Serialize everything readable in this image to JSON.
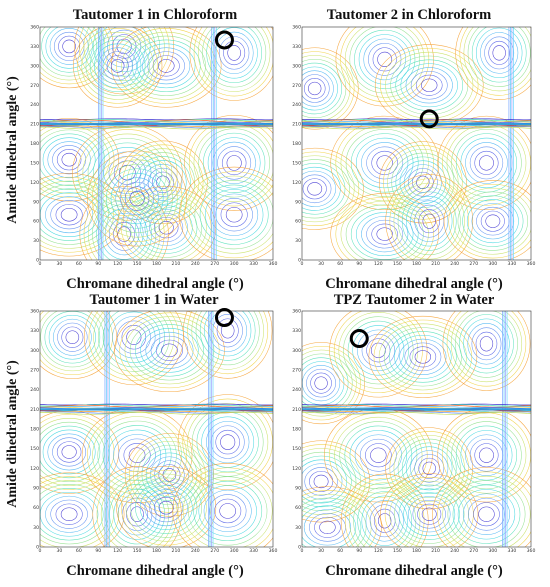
{
  "chart_data": [
    {
      "type": "contour",
      "title": "Tautomer 1 in Chloroform",
      "xlabel": "Chromane dihedral angle (°)",
      "ylabel": "Amide dihedral angle (°)",
      "xlim": [
        0,
        360
      ],
      "ylim": [
        0,
        360
      ],
      "x_ticks": [
        "0",
        "30",
        "60",
        "90",
        "120",
        "150",
        "180",
        "210",
        "240",
        "270",
        "300",
        "330",
        "360"
      ],
      "y_ticks": [
        "0",
        "30",
        "60",
        "90",
        "120",
        "150",
        "180",
        "210",
        "240",
        "270",
        "300",
        "330",
        "360"
      ],
      "wall_y": 210,
      "minima": [
        [
          45,
          330
        ],
        [
          130,
          330
        ],
        [
          195,
          300
        ],
        [
          300,
          320
        ],
        [
          45,
          155
        ],
        [
          135,
          135
        ],
        [
          190,
          120
        ],
        [
          300,
          150
        ],
        [
          45,
          70
        ],
        [
          130,
          40
        ],
        [
          195,
          50
        ],
        [
          300,
          70
        ],
        [
          120,
          300
        ],
        [
          150,
          95
        ]
      ],
      "vertical_walls": [
        95,
        270
      ],
      "marked_point": [
        285,
        340
      ]
    },
    {
      "type": "contour",
      "title": "Tautomer 2 in Chloroform",
      "xlabel": "Chromane dihedral angle (°)",
      "xlim": [
        0,
        360
      ],
      "ylim": [
        0,
        360
      ],
      "x_ticks": [
        "0",
        "30",
        "60",
        "90",
        "120",
        "150",
        "180",
        "210",
        "240",
        "270",
        "300",
        "330",
        "360"
      ],
      "y_ticks": [
        "0",
        "30",
        "60",
        "90",
        "120",
        "150",
        "180",
        "210",
        "240",
        "270",
        "300",
        "330",
        "360"
      ],
      "wall_y": 210,
      "minima": [
        [
          20,
          265
        ],
        [
          130,
          310
        ],
        [
          200,
          270
        ],
        [
          310,
          320
        ],
        [
          20,
          110
        ],
        [
          130,
          150
        ],
        [
          190,
          120
        ],
        [
          290,
          150
        ],
        [
          130,
          40
        ],
        [
          200,
          60
        ],
        [
          300,
          60
        ]
      ],
      "vertical_walls": [
        330
      ],
      "marked_point": [
        200,
        218
      ]
    },
    {
      "type": "contour",
      "title": "Tautomer 1 in Water",
      "xlabel": "Chromane dihedral angle (°)",
      "ylabel": "Amide dihedral angle (°)",
      "xlim": [
        0,
        360
      ],
      "ylim": [
        0,
        360
      ],
      "x_ticks": [
        "0",
        "30",
        "60",
        "90",
        "120",
        "150",
        "180",
        "210",
        "240",
        "270",
        "300",
        "330",
        "360"
      ],
      "y_ticks": [
        "0",
        "30",
        "60",
        "90",
        "120",
        "150",
        "180",
        "210",
        "240",
        "270",
        "300",
        "330",
        "360"
      ],
      "wall_y": 210,
      "minima": [
        [
          50,
          320
        ],
        [
          145,
          320
        ],
        [
          200,
          300
        ],
        [
          290,
          330
        ],
        [
          45,
          145
        ],
        [
          150,
          140
        ],
        [
          200,
          110
        ],
        [
          290,
          160
        ],
        [
          45,
          50
        ],
        [
          150,
          50
        ],
        [
          195,
          60
        ],
        [
          290,
          55
        ]
      ],
      "vertical_walls": [
        105,
        265
      ],
      "marked_point": [
        285,
        350
      ]
    },
    {
      "type": "contour",
      "title": "TPZ Tautomer 2 in Water",
      "xlabel": "Chromane dihedral angle (°)",
      "xlim": [
        0,
        360
      ],
      "ylim": [
        0,
        360
      ],
      "x_ticks": [
        "0",
        "30",
        "60",
        "90",
        "120",
        "150",
        "180",
        "210",
        "240",
        "270",
        "300",
        "330",
        "360"
      ],
      "y_ticks": [
        "0",
        "30",
        "60",
        "90",
        "120",
        "150",
        "180",
        "210",
        "240",
        "270",
        "300",
        "330",
        "360"
      ],
      "wall_y": 210,
      "minima": [
        [
          30,
          250
        ],
        [
          120,
          300
        ],
        [
          190,
          290
        ],
        [
          290,
          310
        ],
        [
          30,
          100
        ],
        [
          120,
          140
        ],
        [
          200,
          120
        ],
        [
          290,
          140
        ],
        [
          40,
          30
        ],
        [
          130,
          40
        ],
        [
          200,
          50
        ],
        [
          290,
          50
        ]
      ],
      "vertical_walls": [
        320
      ],
      "marked_point": [
        90,
        318
      ]
    }
  ]
}
